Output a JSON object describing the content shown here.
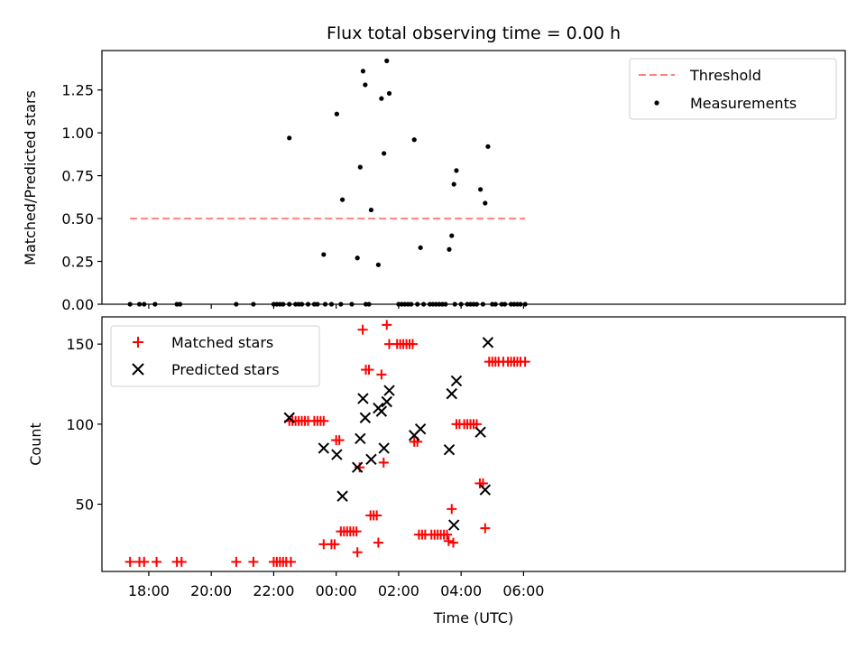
{
  "chart_data": [
    {
      "type": "scatter",
      "title": "Flux total observing time = 0.00 h",
      "xlabel": "",
      "ylabel": "Matched/Predicted stars",
      "xlim": [
        -7.5,
        16.3
      ],
      "ylim": [
        0.0,
        1.48
      ],
      "x_unit": "hours relative to 00:00 UTC",
      "yticks": [
        0.0,
        0.25,
        0.5,
        0.75,
        1.0,
        1.25
      ],
      "ytick_labels": [
        "0.00",
        "0.25",
        "0.50",
        "0.75",
        "1.00",
        "1.25"
      ],
      "legend": {
        "placement": "upper right",
        "entries": [
          "Threshold",
          "Measurements"
        ]
      },
      "threshold": {
        "name": "Threshold",
        "y": 0.5,
        "x": [
          -6.6,
          6.05
        ],
        "color": "#ff8080"
      },
      "series": [
        {
          "name": "Measurements",
          "color": "#000000",
          "points": [
            [
              -6.6,
              0
            ],
            [
              -6.3,
              0
            ],
            [
              -6.15,
              0
            ],
            [
              -5.8,
              0
            ],
            [
              -5.1,
              0
            ],
            [
              -5.0,
              0
            ],
            [
              -3.2,
              0
            ],
            [
              -2.65,
              0
            ],
            [
              -2.0,
              0
            ],
            [
              -1.9,
              0
            ],
            [
              -1.8,
              0
            ],
            [
              -1.7,
              0
            ],
            [
              -1.5,
              0
            ],
            [
              -1.3,
              0
            ],
            [
              -1.2,
              0
            ],
            [
              -1.1,
              0
            ],
            [
              -0.9,
              0
            ],
            [
              -0.7,
              0
            ],
            [
              -0.6,
              0
            ],
            [
              -0.35,
              0
            ],
            [
              -0.15,
              0
            ],
            [
              0.15,
              0
            ],
            [
              0.5,
              0
            ],
            [
              0.95,
              0
            ],
            [
              1.05,
              0
            ],
            [
              2.0,
              0
            ],
            [
              2.1,
              0
            ],
            [
              2.2,
              0
            ],
            [
              2.3,
              0
            ],
            [
              2.4,
              0
            ],
            [
              2.6,
              0
            ],
            [
              2.8,
              0
            ],
            [
              3.0,
              0
            ],
            [
              3.1,
              0
            ],
            [
              3.2,
              0
            ],
            [
              3.3,
              0
            ],
            [
              3.4,
              0
            ],
            [
              3.5,
              0
            ],
            [
              3.8,
              0
            ],
            [
              4.0,
              0
            ],
            [
              4.2,
              0
            ],
            [
              4.3,
              0
            ],
            [
              4.4,
              0
            ],
            [
              4.5,
              0
            ],
            [
              4.7,
              0
            ],
            [
              5.0,
              0
            ],
            [
              5.1,
              0
            ],
            [
              5.3,
              0
            ],
            [
              5.4,
              0
            ],
            [
              5.6,
              0
            ],
            [
              5.7,
              0
            ],
            [
              5.8,
              0
            ],
            [
              5.9,
              0
            ],
            [
              6.05,
              0
            ],
            [
              -1.5,
              0.97
            ],
            [
              -0.4,
              0.29
            ],
            [
              0.02,
              1.11
            ],
            [
              0.2,
              0.61
            ],
            [
              0.68,
              0.27
            ],
            [
              0.77,
              0.8
            ],
            [
              0.86,
              1.36
            ],
            [
              0.93,
              1.28
            ],
            [
              1.12,
              0.55
            ],
            [
              1.35,
              0.23
            ],
            [
              1.45,
              1.2
            ],
            [
              1.53,
              0.88
            ],
            [
              1.62,
              1.42
            ],
            [
              1.7,
              1.23
            ],
            [
              2.5,
              0.96
            ],
            [
              2.7,
              0.33
            ],
            [
              3.62,
              0.32
            ],
            [
              3.7,
              0.4
            ],
            [
              3.77,
              0.7
            ],
            [
              3.85,
              0.78
            ],
            [
              4.62,
              0.67
            ],
            [
              4.77,
              0.59
            ],
            [
              4.86,
              0.92
            ]
          ]
        }
      ]
    },
    {
      "type": "scatter",
      "title": "",
      "xlabel": "Time (UTC)",
      "ylabel": "Count",
      "xlim": [
        -7.5,
        16.3
      ],
      "ylim": [
        8,
        167
      ],
      "x_unit": "hours relative to 00:00 UTC",
      "xticks": [
        -6,
        -4,
        -2,
        0,
        2,
        4,
        6
      ],
      "xtick_labels": [
        "18:00",
        "20:00",
        "22:00",
        "00:00",
        "02:00",
        "04:00",
        "06:00"
      ],
      "yticks": [
        50,
        100,
        150
      ],
      "ytick_labels": [
        "50",
        "100",
        "150"
      ],
      "legend": {
        "placement": "upper left",
        "entries": [
          "Matched stars",
          "Predicted stars"
        ]
      },
      "series": [
        {
          "name": "Matched stars",
          "marker": "plus",
          "color": "#ff0000",
          "points": [
            [
              -6.6,
              14
            ],
            [
              -6.3,
              14
            ],
            [
              -6.15,
              14
            ],
            [
              -5.75,
              14
            ],
            [
              -5.1,
              14
            ],
            [
              -4.95,
              14
            ],
            [
              -3.2,
              14
            ],
            [
              -2.65,
              14
            ],
            [
              -2.0,
              14
            ],
            [
              -1.9,
              14
            ],
            [
              -1.8,
              14
            ],
            [
              -1.7,
              14
            ],
            [
              -1.6,
              14
            ],
            [
              -1.45,
              14
            ],
            [
              -1.5,
              102
            ],
            [
              -1.4,
              102
            ],
            [
              -1.3,
              102
            ],
            [
              -1.2,
              102
            ],
            [
              -1.1,
              102
            ],
            [
              -1.0,
              102
            ],
            [
              -0.9,
              102
            ],
            [
              -0.7,
              102
            ],
            [
              -0.6,
              102
            ],
            [
              -0.5,
              102
            ],
            [
              -0.4,
              102
            ],
            [
              -0.4,
              25
            ],
            [
              -0.15,
              25
            ],
            [
              -0.05,
              25
            ],
            [
              0.0,
              90
            ],
            [
              0.1,
              90
            ],
            [
              0.15,
              33
            ],
            [
              0.25,
              33
            ],
            [
              0.35,
              33
            ],
            [
              0.45,
              33
            ],
            [
              0.55,
              33
            ],
            [
              0.65,
              33
            ],
            [
              0.68,
              20
            ],
            [
              0.75,
              73
            ],
            [
              0.85,
              159
            ],
            [
              0.95,
              134
            ],
            [
              1.05,
              134
            ],
            [
              1.1,
              43
            ],
            [
              1.2,
              43
            ],
            [
              1.3,
              43
            ],
            [
              1.35,
              26
            ],
            [
              1.45,
              131
            ],
            [
              1.52,
              76
            ],
            [
              1.62,
              162
            ],
            [
              1.7,
              150
            ],
            [
              1.95,
              150
            ],
            [
              2.05,
              150
            ],
            [
              2.15,
              150
            ],
            [
              2.25,
              150
            ],
            [
              2.35,
              150
            ],
            [
              2.45,
              150
            ],
            [
              2.5,
              89
            ],
            [
              2.6,
              89
            ],
            [
              2.65,
              31
            ],
            [
              2.75,
              31
            ],
            [
              2.85,
              31
            ],
            [
              3.05,
              31
            ],
            [
              3.15,
              31
            ],
            [
              3.25,
              31
            ],
            [
              3.35,
              31
            ],
            [
              3.45,
              31
            ],
            [
              3.55,
              31
            ],
            [
              3.6,
              27
            ],
            [
              3.7,
              47
            ],
            [
              3.75,
              26
            ],
            [
              3.85,
              100
            ],
            [
              3.95,
              100
            ],
            [
              4.1,
              100
            ],
            [
              4.2,
              100
            ],
            [
              4.3,
              100
            ],
            [
              4.4,
              100
            ],
            [
              4.5,
              100
            ],
            [
              4.6,
              63
            ],
            [
              4.7,
              63
            ],
            [
              4.77,
              35
            ],
            [
              4.9,
              139
            ],
            [
              5.0,
              139
            ],
            [
              5.1,
              139
            ],
            [
              5.2,
              139
            ],
            [
              5.35,
              139
            ],
            [
              5.5,
              139
            ],
            [
              5.6,
              139
            ],
            [
              5.7,
              139
            ],
            [
              5.8,
              139
            ],
            [
              5.9,
              139
            ],
            [
              6.05,
              139
            ]
          ]
        },
        {
          "name": "Predicted stars",
          "marker": "x",
          "color": "#000000",
          "points": [
            [
              -1.5,
              104
            ],
            [
              -0.4,
              85
            ],
            [
              0.02,
              81
            ],
            [
              0.2,
              55
            ],
            [
              0.68,
              73
            ],
            [
              0.77,
              91
            ],
            [
              0.86,
              116
            ],
            [
              0.93,
              104
            ],
            [
              1.12,
              78
            ],
            [
              1.35,
              110
            ],
            [
              1.45,
              108
            ],
            [
              1.53,
              85
            ],
            [
              1.62,
              114
            ],
            [
              1.7,
              121
            ],
            [
              2.5,
              93
            ],
            [
              2.7,
              97
            ],
            [
              3.62,
              84
            ],
            [
              3.7,
              119
            ],
            [
              3.77,
              37
            ],
            [
              3.85,
              127
            ],
            [
              4.62,
              95
            ],
            [
              4.77,
              59
            ],
            [
              4.86,
              151
            ]
          ]
        }
      ]
    }
  ]
}
